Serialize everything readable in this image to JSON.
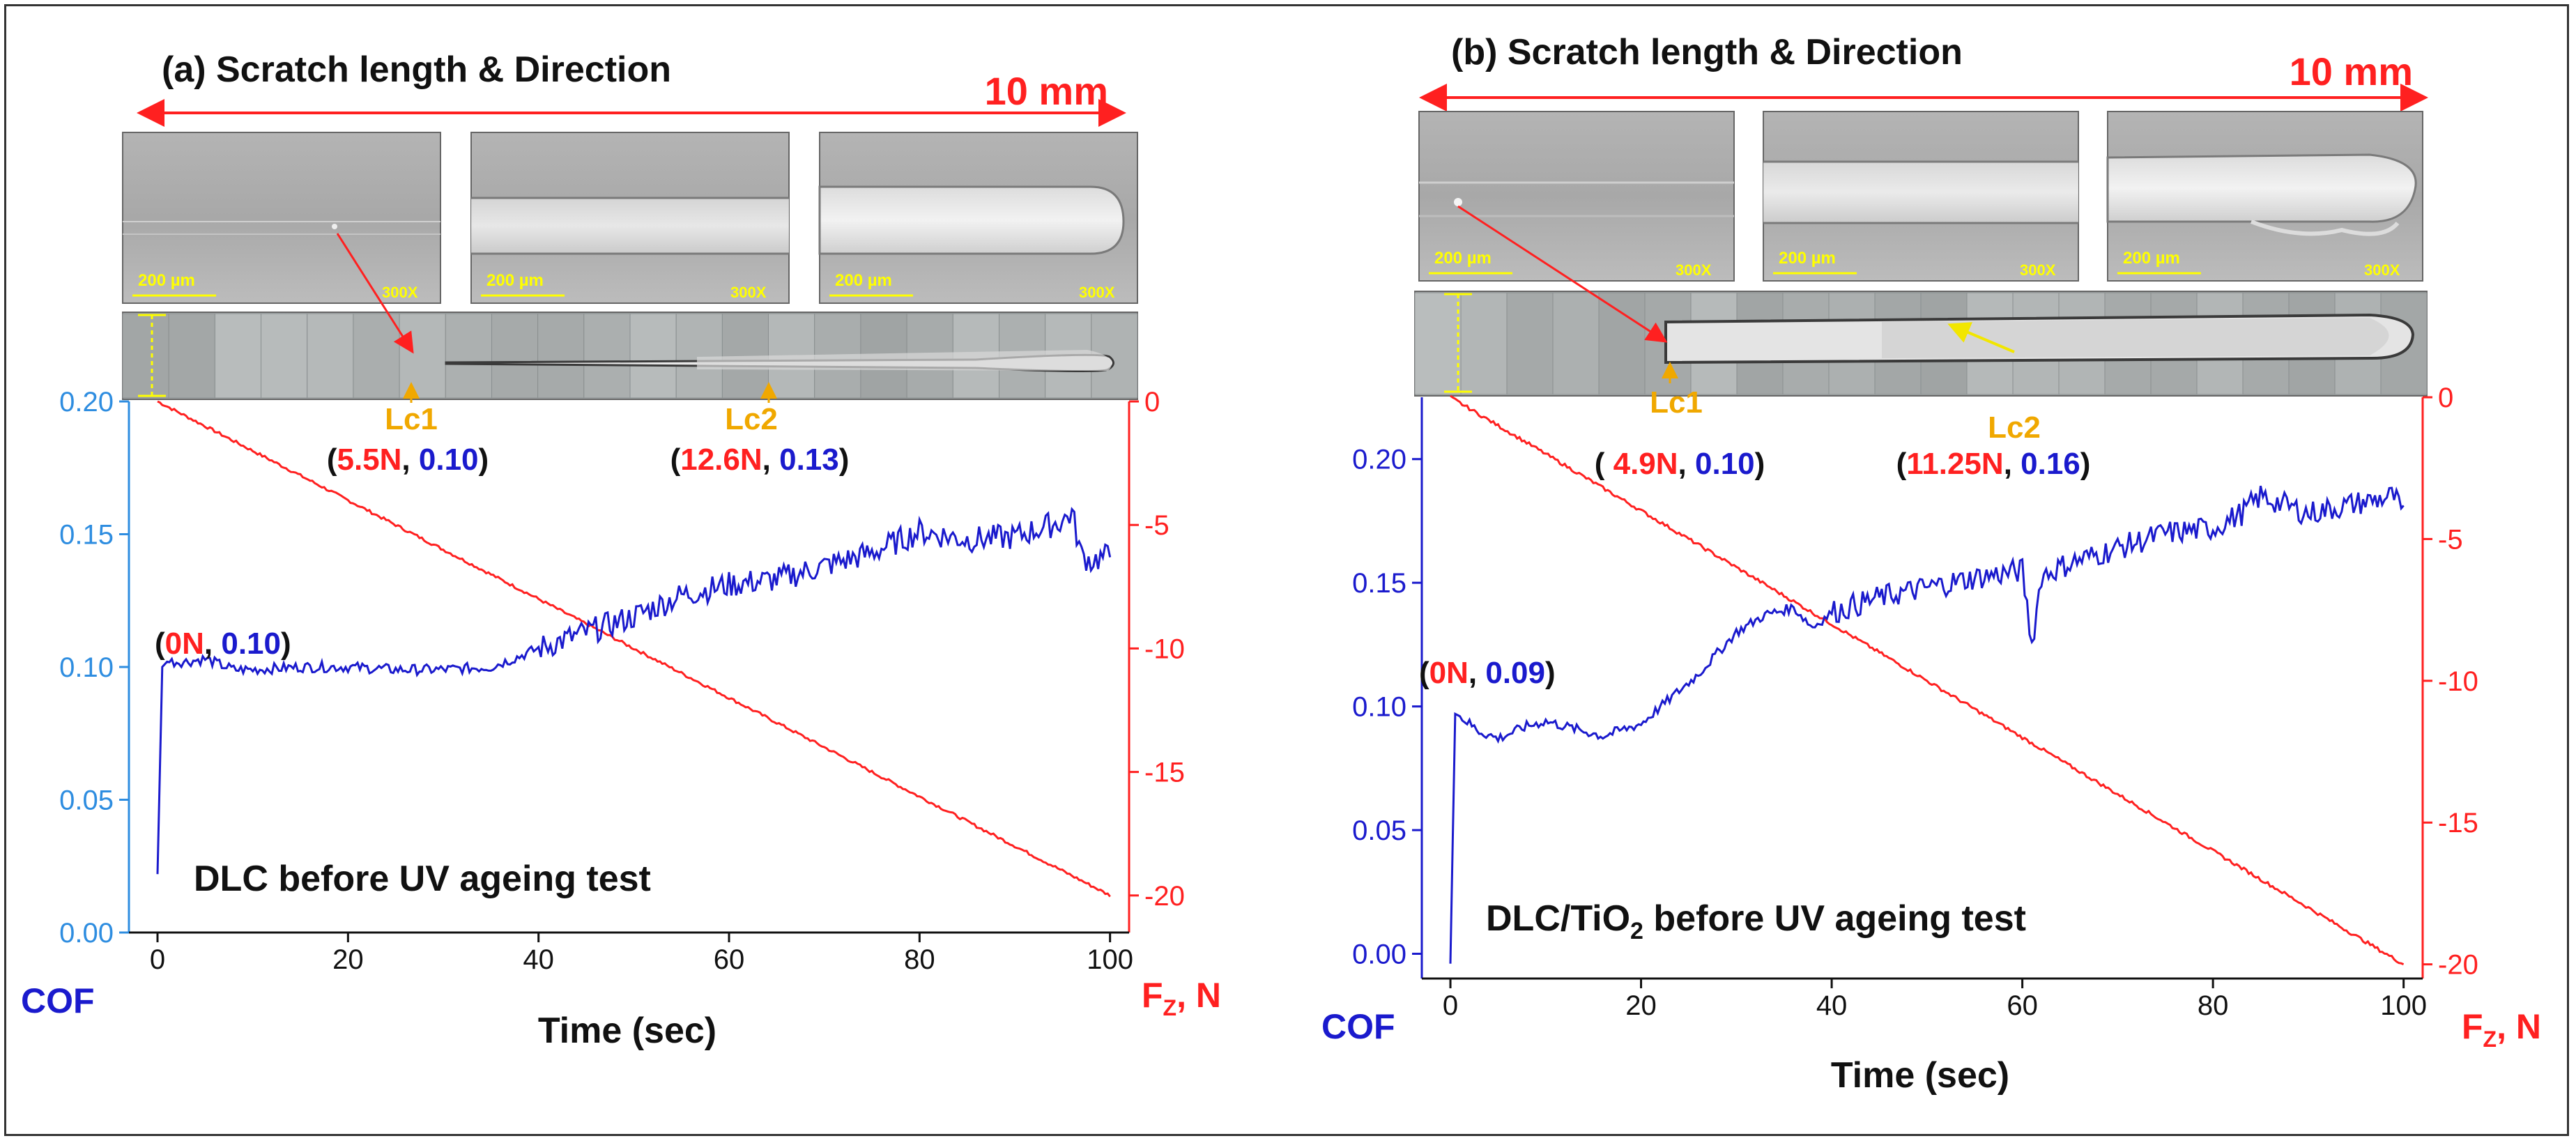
{
  "figure": {
    "colors": {
      "cof": "#1a1acd",
      "cof_axis": "#2e8de0",
      "force": "#ff2020",
      "critical": "#f0a800",
      "title": "#111111"
    },
    "panels": [
      {
        "id": "a",
        "title": "(a) Scratch length & Direction",
        "length_label": "10 mm",
        "scale_bar": "200 µm",
        "magnification": "300X",
        "sample_label": "DLC before UV ageing test",
        "cof_axis_title": "COF",
        "force_axis_title_main": "F",
        "force_axis_title_sub": "Z",
        "force_axis_title_unit": ", N",
        "xlabel": "Time (sec)",
        "x_ticks": [
          "0",
          "20",
          "40",
          "60",
          "80",
          "100"
        ],
        "y_ticks": [
          "0.00",
          "0.05",
          "0.10",
          "0.15",
          "0.20"
        ],
        "force_ticks": [
          "0",
          "-5",
          "-10",
          "-15",
          "-20"
        ],
        "lc1": {
          "label": "Lc1",
          "force": "5.5N",
          "sep": ", ",
          "cof": "0.10",
          "open": "(",
          "close": ")"
        },
        "lc2": {
          "label": "Lc2",
          "force": "12.6N",
          "sep": ", ",
          "cof": "0.13",
          "open": "(",
          "close": ")"
        },
        "start": {
          "force": "0N",
          "sep": ", ",
          "cof": "0.10",
          "open": "(",
          "close": ")"
        }
      },
      {
        "id": "b",
        "title": "(b) Scratch length & Direction",
        "length_label": "10 mm",
        "scale_bar": "200 µm",
        "magnification": "300X",
        "sample_label_pre": "DLC/TiO",
        "sample_label_sub": "2",
        "sample_label_post": " before UV ageing test",
        "cof_axis_title": "COF",
        "force_axis_title_main": "F",
        "force_axis_title_sub": "Z",
        "force_axis_title_unit": ", N",
        "xlabel": "Time (sec)",
        "x_ticks": [
          "0",
          "20",
          "40",
          "60",
          "80",
          "100"
        ],
        "y_ticks": [
          "0.00",
          "0.05",
          "0.10",
          "0.15",
          "0.20"
        ],
        "force_ticks": [
          "0",
          "-5",
          "-10",
          "-15",
          "-20"
        ],
        "lc1": {
          "label": "Lc1",
          "force": "4.9N",
          "sep": ", ",
          "cof": "0.10",
          "open": "( ",
          "close": ")"
        },
        "lc2": {
          "label": "Lc2",
          "force": "11.25N",
          "sep": ", ",
          "cof": "0.16",
          "open": "(",
          "close": ")"
        },
        "start": {
          "force": "0N",
          "sep": ", ",
          "cof": "0.09",
          "open": "(",
          "close": ")"
        }
      }
    ]
  },
  "chart_data": [
    {
      "type": "line",
      "title": "(a) Scratch length & Direction",
      "xlabel": "Time (sec)",
      "ylabel": "COF",
      "y2label": "FZ, N",
      "xlim": [
        -3,
        102
      ],
      "ylim": [
        0.0,
        0.2
      ],
      "y2lim": [
        -21.5,
        0.0
      ],
      "series": [
        {
          "name": "COF",
          "axis": "left",
          "x": [
            0,
            0.5,
            1,
            3,
            5,
            8,
            10,
            15,
            20,
            25,
            30,
            35,
            38,
            40,
            45,
            50,
            55,
            60,
            65,
            70,
            75,
            80,
            85,
            90,
            95,
            96,
            97,
            98,
            100
          ],
          "y": [
            0.022,
            0.1,
            0.102,
            0.102,
            0.103,
            0.099,
            0.099,
            0.1,
            0.1,
            0.099,
            0.099,
            0.1,
            0.104,
            0.107,
            0.113,
            0.119,
            0.127,
            0.131,
            0.133,
            0.138,
            0.143,
            0.151,
            0.148,
            0.149,
            0.155,
            0.158,
            0.142,
            0.14,
            0.142
          ]
        },
        {
          "name": "FZ",
          "axis": "right",
          "x": [
            0,
            100
          ],
          "y": [
            0,
            -20
          ]
        }
      ],
      "annotations": [
        {
          "label": "Lc1",
          "x": 26.5,
          "force": 5.5,
          "cof": 0.1
        },
        {
          "label": "Lc2",
          "x": 63,
          "force": 12.6,
          "cof": 0.13
        },
        {
          "label": "start",
          "x": 0,
          "force": 0,
          "cof": 0.1
        }
      ]
    },
    {
      "type": "line",
      "title": "(b) Scratch length & Direction",
      "xlabel": "Time (sec)",
      "ylabel": "COF",
      "y2label": "FZ, N",
      "xlim": [
        -3,
        102
      ],
      "ylim": [
        -0.01,
        0.225
      ],
      "y2lim": [
        -20.5,
        0.0
      ],
      "series": [
        {
          "name": "COF",
          "axis": "left",
          "x": [
            0,
            0.5,
            1,
            3,
            5,
            8,
            10,
            13,
            16,
            20,
            23,
            26,
            30,
            33,
            36,
            38,
            40,
            45,
            50,
            55,
            60,
            61,
            62,
            65,
            70,
            75,
            80,
            83,
            85,
            90,
            95,
            99,
            100
          ],
          "y": [
            -0.004,
            0.097,
            0.096,
            0.09,
            0.087,
            0.092,
            0.094,
            0.091,
            0.088,
            0.093,
            0.103,
            0.113,
            0.13,
            0.137,
            0.14,
            0.132,
            0.138,
            0.144,
            0.148,
            0.152,
            0.155,
            0.125,
            0.153,
            0.158,
            0.164,
            0.17,
            0.172,
            0.178,
            0.185,
            0.178,
            0.182,
            0.185,
            0.177
          ]
        },
        {
          "name": "FZ",
          "axis": "right",
          "x": [
            0,
            100
          ],
          "y": [
            0,
            -20
          ]
        }
      ],
      "annotations": [
        {
          "label": "Lc1",
          "x": 23,
          "force": 4.9,
          "cof": 0.1
        },
        {
          "label": "Lc2",
          "x": 52,
          "force": 11.25,
          "cof": 0.16
        },
        {
          "label": "start",
          "x": 0,
          "force": 0,
          "cof": 0.09
        }
      ]
    }
  ]
}
